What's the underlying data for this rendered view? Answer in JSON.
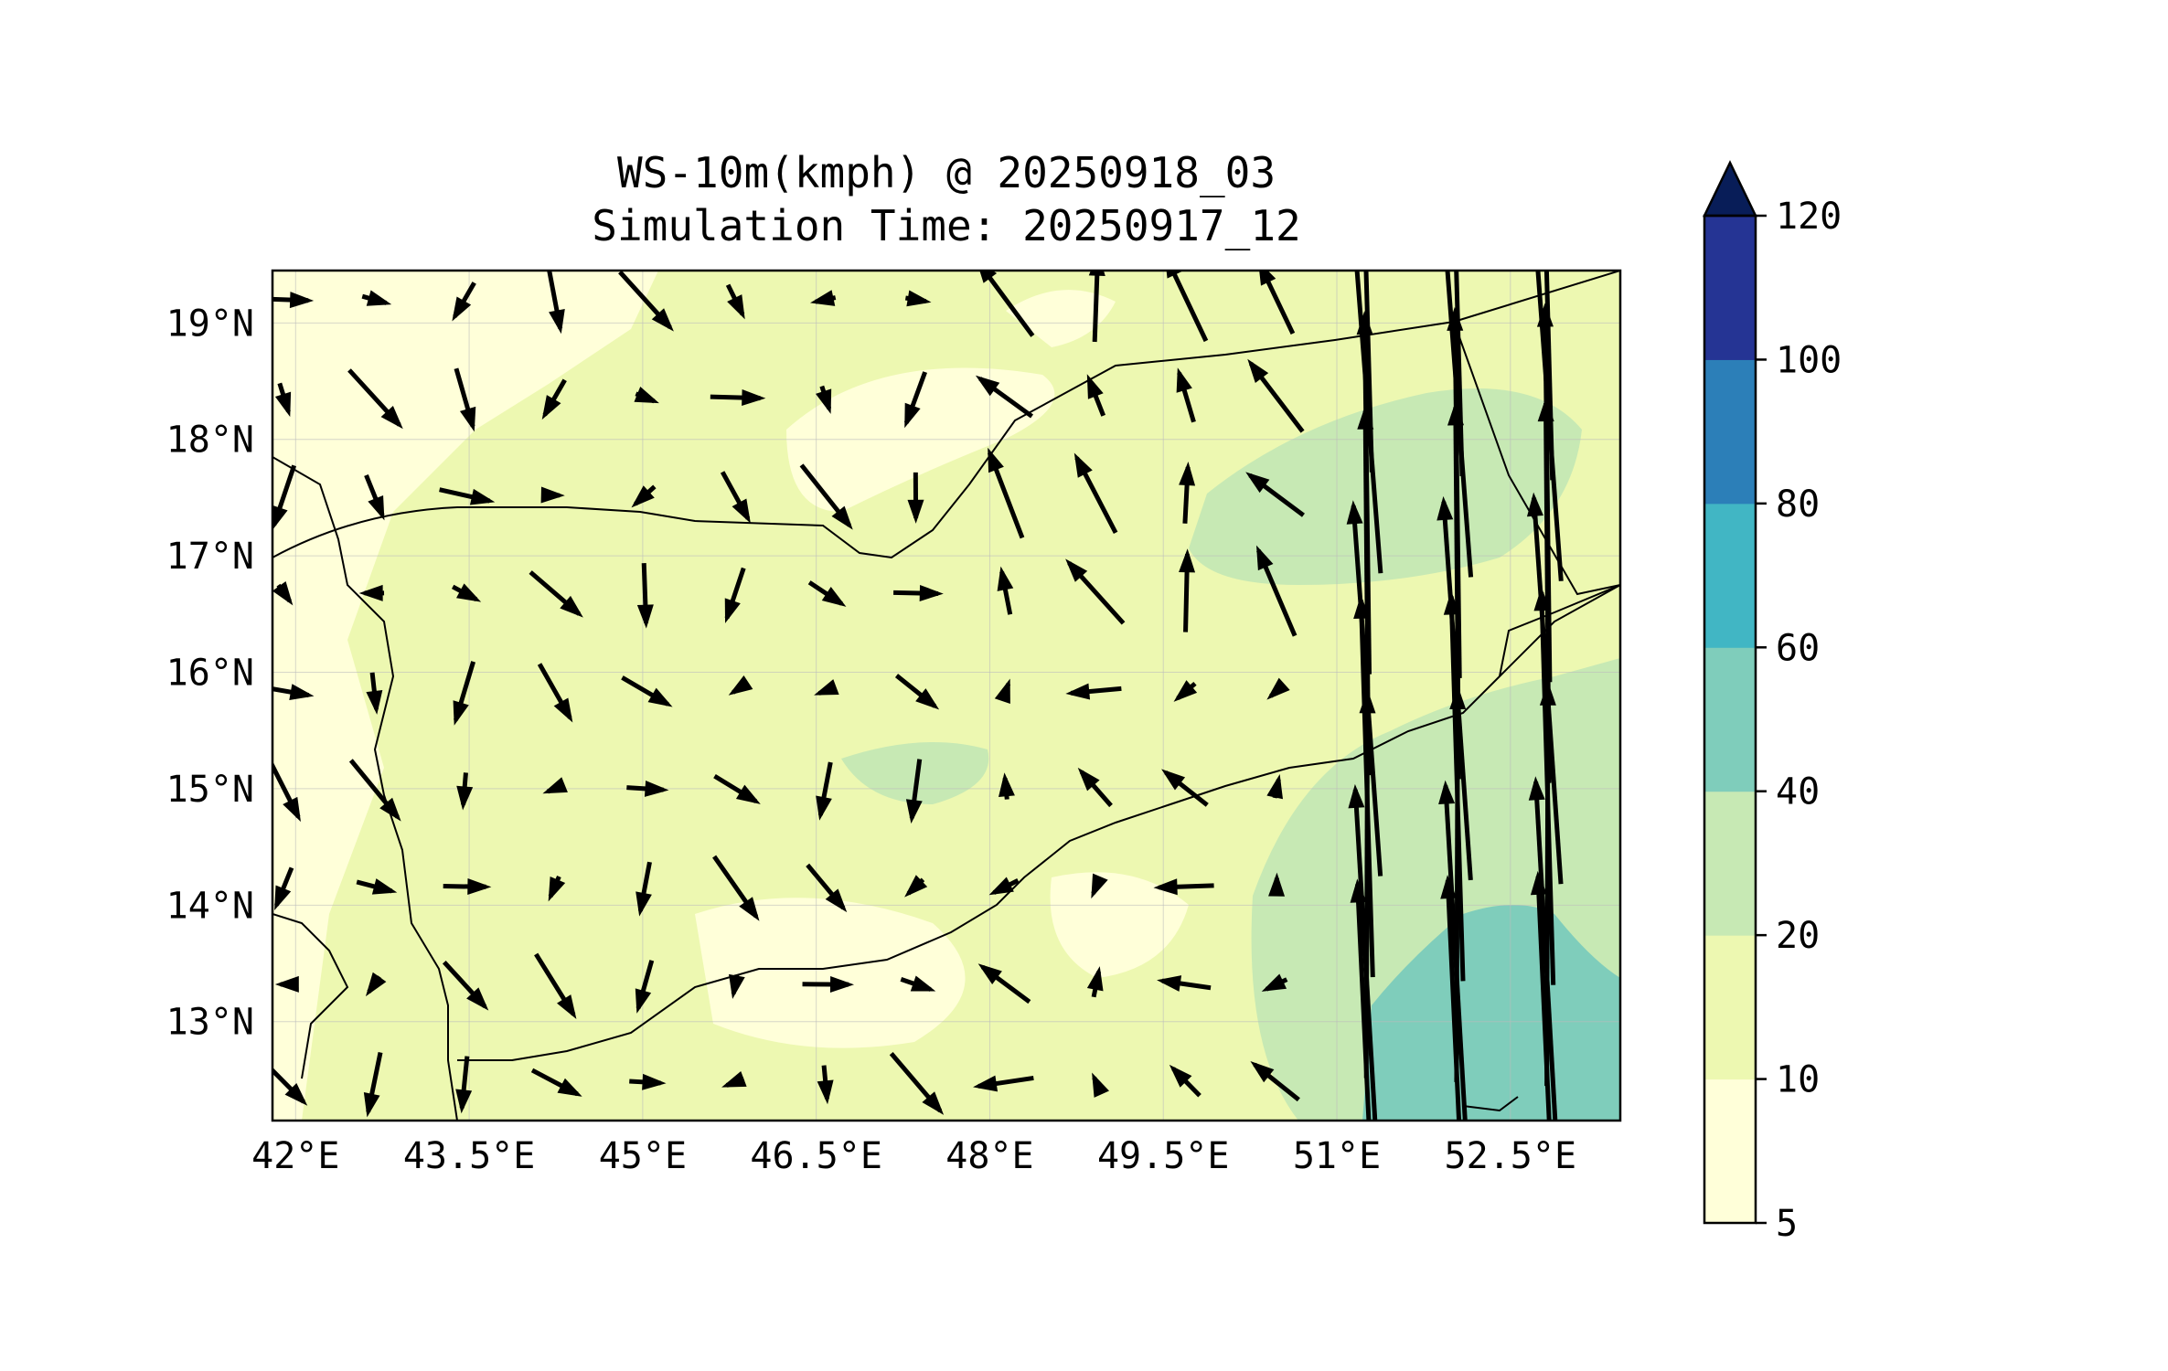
{
  "title": {
    "line1": "WS-10m(kmph) @ 20250918_03",
    "line2": "Simulation Time: 20250917_12"
  },
  "map": {
    "lon_range": [
      41.8,
      53.45
    ],
    "lat_range": [
      12.15,
      19.45
    ],
    "x_ticks": [
      {
        "value": 42.0,
        "label": "42°E"
      },
      {
        "value": 43.5,
        "label": "43.5°E"
      },
      {
        "value": 45.0,
        "label": "45°E"
      },
      {
        "value": 46.5,
        "label": "46.5°E"
      },
      {
        "value": 48.0,
        "label": "48°E"
      },
      {
        "value": 49.5,
        "label": "49.5°E"
      },
      {
        "value": 51.0,
        "label": "51°E"
      },
      {
        "value": 52.5,
        "label": "52.5°E"
      }
    ],
    "y_ticks": [
      {
        "value": 19,
        "label": "19°N"
      },
      {
        "value": 18,
        "label": "18°N"
      },
      {
        "value": 17,
        "label": "17°N"
      },
      {
        "value": 16,
        "label": "16°N"
      },
      {
        "value": 15,
        "label": "15°N"
      },
      {
        "value": 14,
        "label": "14°N"
      },
      {
        "value": 13,
        "label": "13°N"
      }
    ],
    "gridlines": true,
    "features": [
      "coastline",
      "country borders",
      "wind vectors",
      "filled wind-speed contours"
    ]
  },
  "colorbar": {
    "levels": [
      5,
      10,
      20,
      40,
      60,
      80,
      100,
      120
    ],
    "labels": [
      "5",
      "10",
      "20",
      "40",
      "60",
      "80",
      "100",
      "120"
    ],
    "colors": [
      "#ffffd9",
      "#edf8b1",
      "#c7e9b4",
      "#7fcdbb",
      "#41b6c4",
      "#2c7fb8",
      "#253494"
    ],
    "extend_color": "#081d58",
    "extend": "max"
  }
}
